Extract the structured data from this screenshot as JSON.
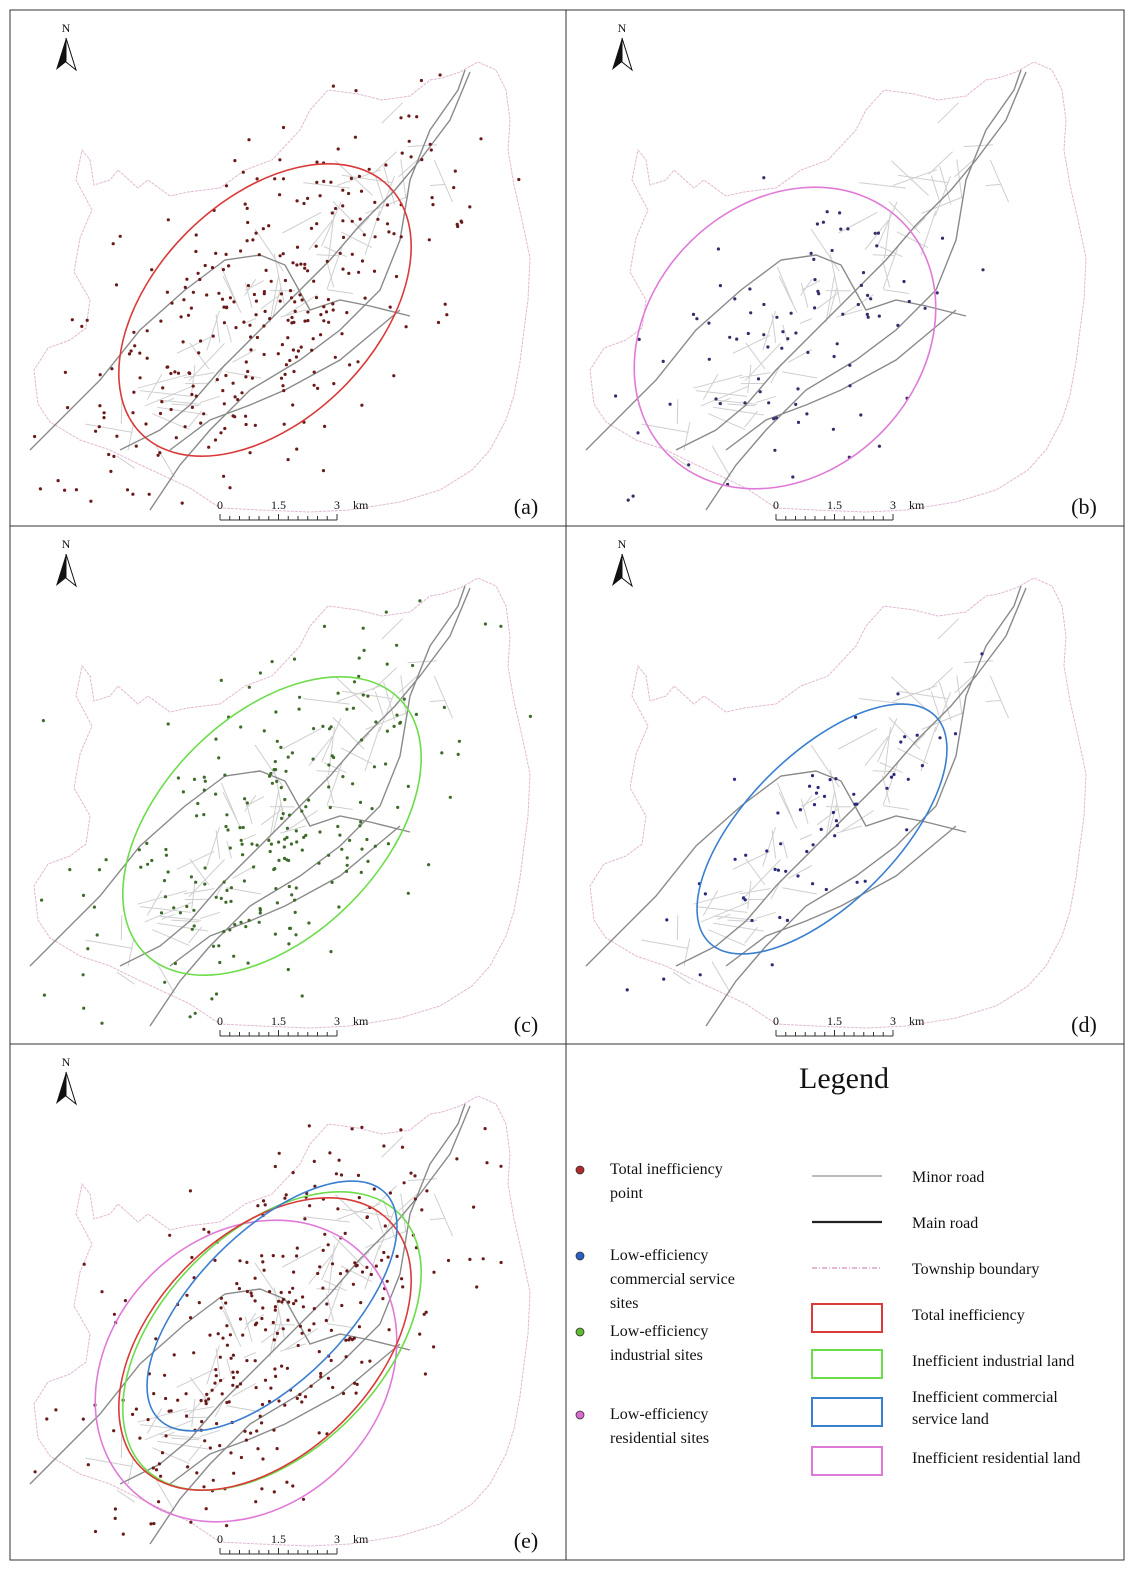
{
  "north_label": "N",
  "scale_bar": {
    "ticks": [
      "0",
      "1.5",
      "3"
    ],
    "unit": "km"
  },
  "panels": [
    {
      "id": "a",
      "label": "(a)",
      "color": "#d93a3a",
      "point_color": "#6b1a1a"
    },
    {
      "id": "b",
      "label": "(b)",
      "color": "#e07ad8",
      "point_color": "#3a2a6b"
    },
    {
      "id": "c",
      "label": "(c)",
      "color": "#6cdc4a",
      "point_color": "#3f6b2a"
    },
    {
      "id": "d",
      "label": "(d)",
      "color": "#3a7fcf",
      "point_color": "#2a2a7a"
    },
    {
      "id": "e",
      "label": "(e)",
      "color": "multi",
      "point_color": "#6b1a1a"
    }
  ],
  "legend": {
    "title": "Legend",
    "point_items": [
      {
        "lines": [
          "Total inefficiency",
          "point"
        ],
        "color": "#b02a2a"
      },
      {
        "lines": [
          "Low-efficiency",
          "commercial service",
          "sites"
        ],
        "color": "#2a5ec8"
      },
      {
        "lines": [
          "Low-efficiency",
          "industrial  sites"
        ],
        "color": "#5fb830"
      },
      {
        "lines": [
          "Low-efficiency",
          "residential sites"
        ],
        "color": "#d86ad0"
      }
    ],
    "line_items": [
      {
        "lines": [
          "Minor road"
        ],
        "kind": "minor",
        "color": "#bbbbbb"
      },
      {
        "lines": [
          "Main road"
        ],
        "kind": "main",
        "color": "#222222"
      },
      {
        "lines": [
          "Township boundary"
        ],
        "kind": "boundary",
        "color": "#d9a3c8"
      },
      {
        "lines": [
          "Total inefficiency"
        ],
        "kind": "box",
        "color": "#d93a3a"
      },
      {
        "lines": [
          "Inefficient industrial land"
        ],
        "kind": "box",
        "color": "#6cdc4a"
      },
      {
        "lines": [
          "Inefficient commercial",
          "service land"
        ],
        "kind": "box",
        "color": "#3a7fcf"
      },
      {
        "lines": [
          "Inefficient residential land"
        ],
        "kind": "box",
        "color": "#e07ad8"
      }
    ]
  }
}
